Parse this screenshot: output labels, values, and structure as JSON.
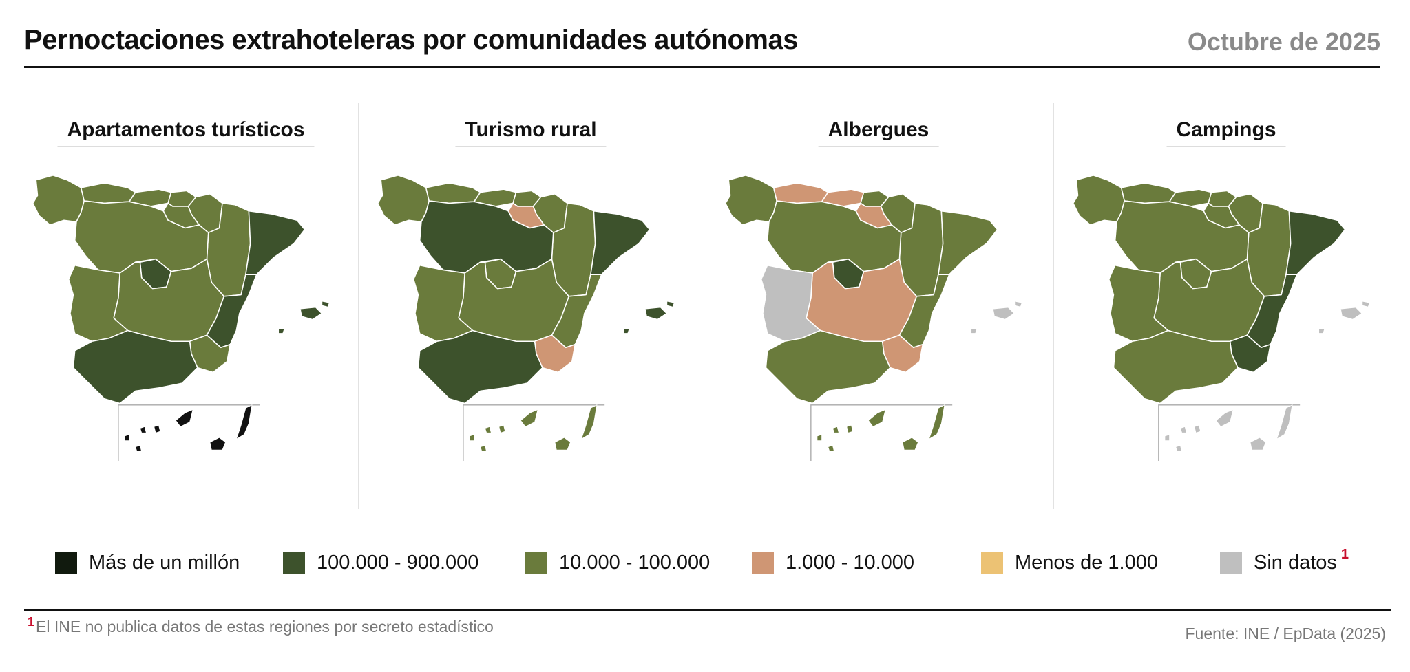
{
  "header": {
    "title": "Pernoctaciones extrahoteleras por comunidades autónomas",
    "date": "Octubre de 2025"
  },
  "colors": {
    "c1": "#111a0e",
    "c2": "#3d522c",
    "c3": "#6a7b3c",
    "c4": "#cf9674",
    "c5": "#ecc274",
    "nd": "#bfbfbf",
    "mask": "#111111"
  },
  "legend": {
    "items": [
      {
        "key": "c1",
        "label": "Más de un millón",
        "mark": ""
      },
      {
        "key": "c2",
        "label": "100.000 - 900.000",
        "mark": ""
      },
      {
        "key": "c3",
        "label": "10.000 - 100.000",
        "mark": ""
      },
      {
        "key": "c4",
        "label": "1.000 - 10.000",
        "mark": ""
      },
      {
        "key": "c5",
        "label": "Menos de 1.000",
        "mark": ""
      },
      {
        "key": "nd",
        "label": "Sin datos",
        "mark": "1"
      }
    ]
  },
  "panels": [
    {
      "title": "Apartamentos turísticos",
      "regions": {
        "galicia": "c3",
        "asturias": "c3",
        "cantabria": "c3",
        "paisvasco": "c3",
        "navarra": "c3",
        "rioja": "c3",
        "aragon": "c3",
        "cataluna": "c2",
        "castillaleon": "c3",
        "madrid": "c2",
        "castillamancha": "c3",
        "valencia": "c2",
        "murcia": "c3",
        "extremadura": "c3",
        "andalucia": "c2",
        "baleares": "c2",
        "canarias": "c1"
      }
    },
    {
      "title": "Turismo rural",
      "regions": {
        "galicia": "c3",
        "asturias": "c3",
        "cantabria": "c3",
        "paisvasco": "c3",
        "navarra": "c3",
        "rioja": "c4",
        "aragon": "c3",
        "cataluna": "c2",
        "castillaleon": "c2",
        "madrid": "c3",
        "castillamancha": "c3",
        "valencia": "c3",
        "murcia": "c4",
        "extremadura": "c3",
        "andalucia": "c2",
        "baleares": "c2",
        "canarias": "c3"
      }
    },
    {
      "title": "Albergues",
      "regions": {
        "galicia": "c3",
        "asturias": "c4",
        "cantabria": "c4",
        "paisvasco": "c3",
        "navarra": "c3",
        "rioja": "c4",
        "aragon": "c3",
        "cataluna": "c3",
        "castillaleon": "c3",
        "madrid": "c2",
        "castillamancha": "c4",
        "valencia": "c3",
        "murcia": "c4",
        "extremadura": "nd",
        "andalucia": "c3",
        "baleares": "nd",
        "canarias": "c3"
      }
    },
    {
      "title": "Campings",
      "regions": {
        "galicia": "c3",
        "asturias": "c3",
        "cantabria": "c3",
        "paisvasco": "c3",
        "navarra": "c3",
        "rioja": "c3",
        "aragon": "c3",
        "cataluna": "c2",
        "castillaleon": "c3",
        "madrid": "c3",
        "castillamancha": "c3",
        "valencia": "c2",
        "murcia": "c2",
        "extremadura": "c3",
        "andalucia": "c3",
        "baleares": "nd",
        "canarias": "nd"
      }
    }
  ],
  "footer": {
    "footnote_mark": "1",
    "footnote": "El INE no publica datos de estas regiones por secreto estadístico",
    "source": "Fuente: INE / EpData (2025)"
  }
}
